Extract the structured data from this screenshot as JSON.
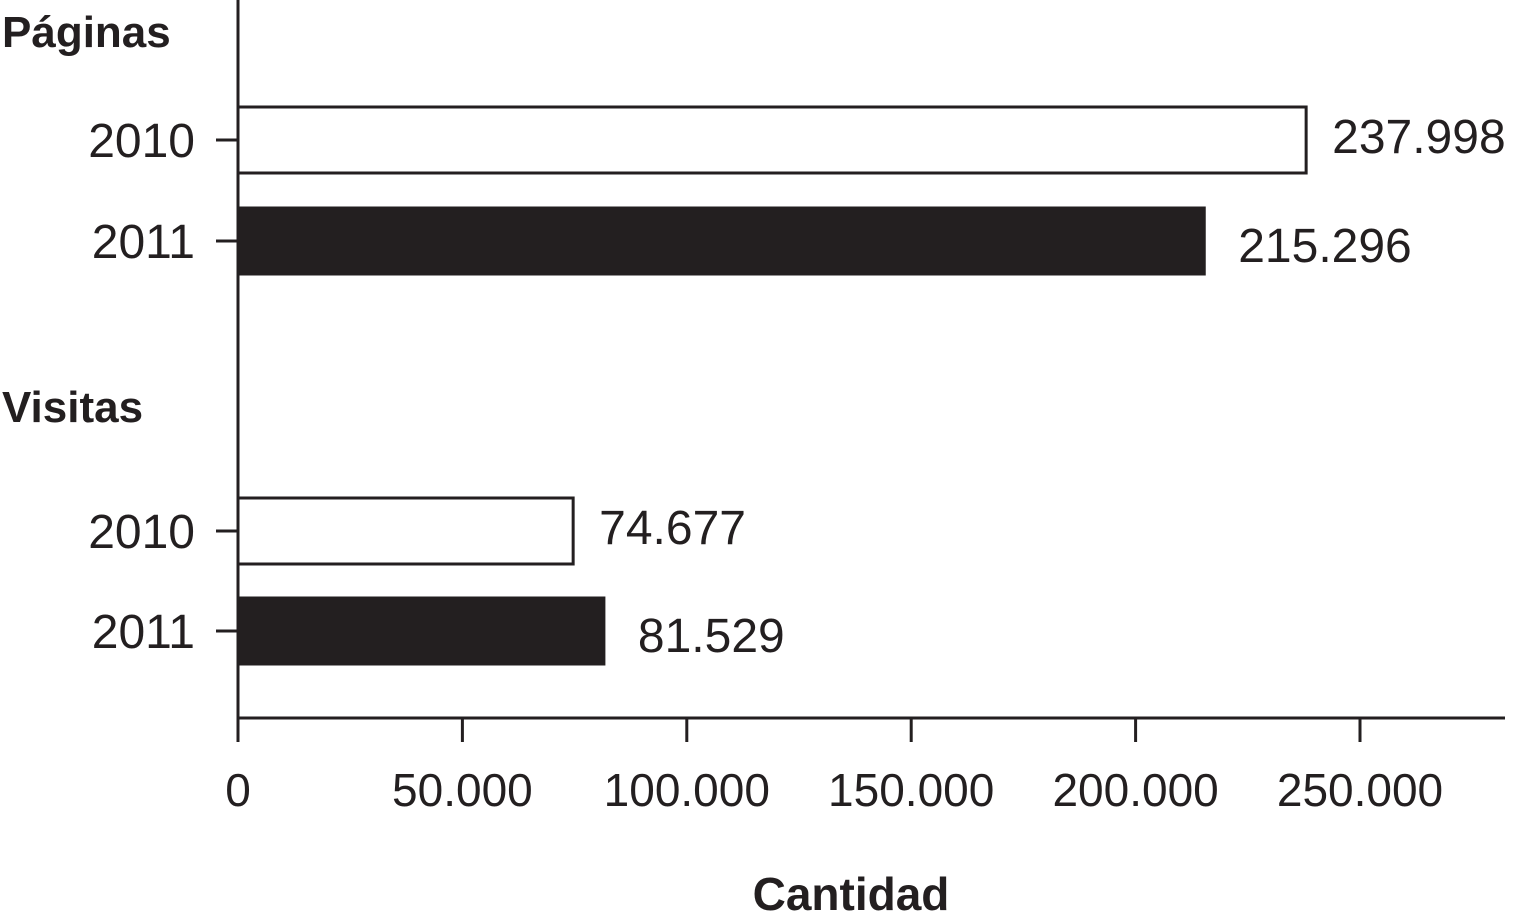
{
  "chart_data": {
    "type": "bar",
    "orientation": "horizontal",
    "xlabel": "Cantidad",
    "ylabel": "",
    "xlim": [
      0,
      282000
    ],
    "x_ticks": [
      0,
      50000,
      100000,
      150000,
      200000,
      250000
    ],
    "x_tick_labels": [
      "0",
      "50.000",
      "100.000",
      "150.000",
      "200.000",
      "250.000"
    ],
    "grid": false,
    "legend": "none",
    "colors": {
      "2010": "#ffffff",
      "2011": "#231f20",
      "axis": "#231f20"
    },
    "groups": [
      {
        "name": "Páginas",
        "bars": [
          {
            "category": "2010",
            "value": 237998,
            "label": "237.998"
          },
          {
            "category": "2011",
            "value": 215296,
            "label": "215.296"
          }
        ]
      },
      {
        "name": "Visitas",
        "bars": [
          {
            "category": "2010",
            "value": 74677,
            "label": "74.677"
          },
          {
            "category": "2011",
            "value": 81529,
            "label": "81.529"
          }
        ]
      }
    ]
  }
}
